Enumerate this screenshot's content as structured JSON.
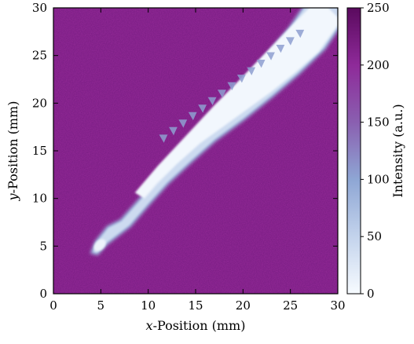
{
  "chart_data": {
    "type": "heatmap",
    "title": "",
    "xlabel_var": "x",
    "xlabel_rest": "-Position (mm)",
    "ylabel_var": "y",
    "ylabel_rest": "-Position (mm)",
    "colorbar_label": "Intensity (a.u.)",
    "xlim": [
      0,
      30
    ],
    "ylim": [
      0,
      30
    ],
    "x_ticks": [
      "0",
      "5",
      "10",
      "15",
      "20",
      "25",
      "30"
    ],
    "y_ticks": [
      "0",
      "5",
      "10",
      "15",
      "20",
      "25",
      "30"
    ],
    "colorbar_range": [
      0,
      250
    ],
    "colorbar_ticks": [
      "0",
      "50",
      "100",
      "150",
      "200",
      "250"
    ],
    "colormap": {
      "stops": [
        {
          "value": 0,
          "color": "#f7fbff"
        },
        {
          "value": 50,
          "color": "#c3d3ec"
        },
        {
          "value": 100,
          "color": "#8ea6d4"
        },
        {
          "value": 150,
          "color": "#8a5fb0"
        },
        {
          "value": 200,
          "color": "#8e2a99"
        },
        {
          "value": 250,
          "color": "#5a0a5e"
        }
      ]
    },
    "background_intensity": 215,
    "features": {
      "plume_outline": [
        [
          4.2,
          4.4
        ],
        [
          4.6,
          5.4
        ],
        [
          5.8,
          6.9
        ],
        [
          7.2,
          7.6
        ],
        [
          9.0,
          9.6
        ],
        [
          11.5,
          12.4
        ],
        [
          14.0,
          15.2
        ],
        [
          17.0,
          18.8
        ],
        [
          20.0,
          22.2
        ],
        [
          22.8,
          25.2
        ],
        [
          25.0,
          27.8
        ],
        [
          26.5,
          30.0
        ],
        [
          30.0,
          30.0
        ],
        [
          30.0,
          28.0
        ],
        [
          28.5,
          25.8
        ],
        [
          25.8,
          23.2
        ],
        [
          23.0,
          20.8
        ],
        [
          20.0,
          18.4
        ],
        [
          17.0,
          16.2
        ],
        [
          14.5,
          14.0
        ],
        [
          12.0,
          11.7
        ],
        [
          10.0,
          9.5
        ],
        [
          8.0,
          7.2
        ],
        [
          5.5,
          5.3
        ],
        [
          4.6,
          4.3
        ]
      ],
      "plume_intensity": 40,
      "core_outline": [
        [
          8.6,
          10.6
        ],
        [
          11.0,
          13.4
        ],
        [
          14.0,
          16.6
        ],
        [
          17.0,
          19.8
        ],
        [
          20.0,
          22.8
        ],
        [
          22.5,
          25.4
        ],
        [
          25.0,
          28.0
        ],
        [
          27.0,
          30.0
        ],
        [
          29.0,
          30.0
        ],
        [
          30.0,
          29.0
        ],
        [
          30.0,
          28.2
        ],
        [
          28.0,
          25.4
        ],
        [
          25.5,
          23.2
        ],
        [
          23.0,
          21.2
        ],
        [
          20.5,
          19.4
        ],
        [
          18.0,
          17.6
        ],
        [
          15.5,
          15.8
        ],
        [
          13.0,
          13.6
        ],
        [
          11.0,
          11.6
        ],
        [
          9.6,
          10.0
        ]
      ],
      "core_intensity": 5,
      "tip_intensity": 10,
      "edge_intensity": 85
    }
  }
}
